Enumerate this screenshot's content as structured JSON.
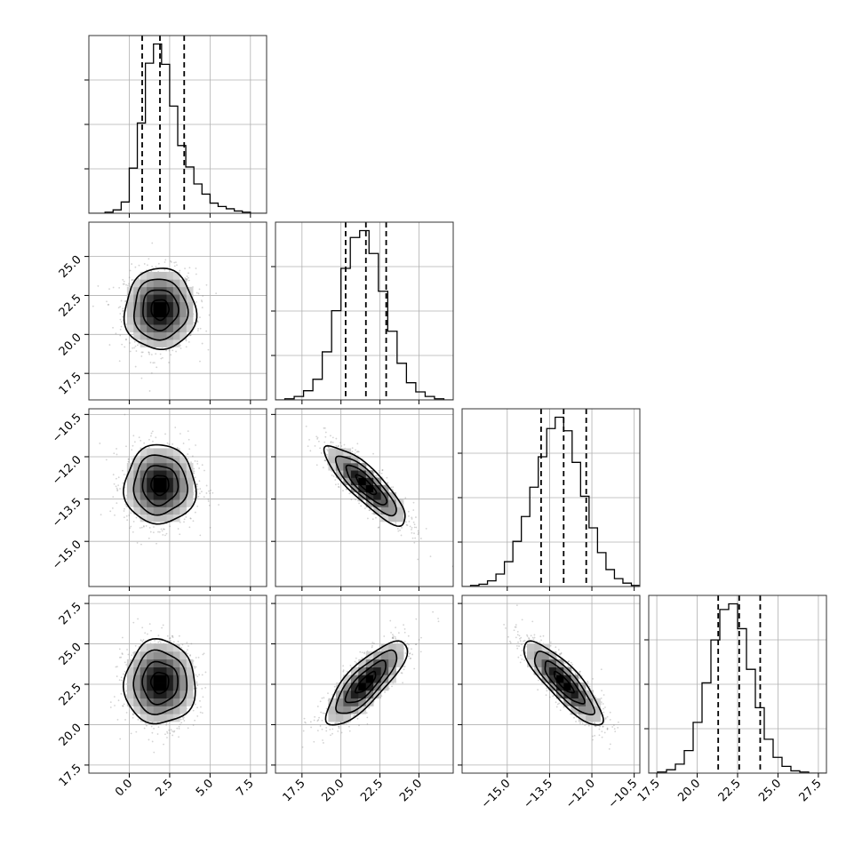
{
  "chart_data": {
    "type": "corner",
    "title": "",
    "parameters": [
      {
        "name": "",
        "range": [
          -2.5,
          8.5
        ],
        "ticks": [
          0.0,
          2.5,
          5.0,
          7.5
        ],
        "tick_labels": [
          "0.0",
          "2.5",
          "5.0",
          "7.5"
        ],
        "quantiles": [
          0.8,
          1.9,
          3.4
        ],
        "mean": 1.9,
        "sd": 1.1,
        "hist_bins": [
          -2.5,
          -2.0,
          -1.5,
          -1.0,
          -0.5,
          0.0,
          0.5,
          1.0,
          1.5,
          2.0,
          2.5,
          3.0,
          3.5,
          4.0,
          4.5,
          5.0,
          5.5,
          6.0,
          6.5,
          7.0,
          7.5,
          8.0,
          8.5
        ],
        "hist_counts": [
          0,
          0,
          1,
          3,
          10,
          40,
          80,
          133,
          150,
          132,
          95,
          60,
          41,
          26,
          17,
          9,
          6,
          4,
          2,
          1,
          0,
          0
        ]
      },
      {
        "name": "",
        "range": [
          15.8,
          27.2
        ],
        "ticks": [
          17.5,
          20.0,
          22.5,
          25.0
        ],
        "tick_labels": [
          "17.5",
          "20.0",
          "22.5",
          "25.0"
        ],
        "quantiles": [
          20.3,
          21.6,
          22.9
        ],
        "mean": 21.6,
        "sd": 1.3,
        "hist_bins": [
          15.8,
          16.4,
          17.0,
          17.6,
          18.2,
          18.8,
          19.4,
          20.0,
          20.6,
          21.2,
          21.8,
          22.4,
          23.0,
          23.6,
          24.2,
          24.8,
          25.4,
          26.0,
          26.6,
          27.2
        ],
        "hist_counts": [
          0,
          1,
          3,
          8,
          18,
          42,
          78,
          115,
          142,
          148,
          128,
          95,
          60,
          32,
          15,
          7,
          3,
          1,
          0
        ]
      },
      {
        "name": "",
        "range": [
          -16.6,
          -10.3
        ],
        "ticks": [
          -15.0,
          -13.5,
          -12.0,
          -10.5
        ],
        "tick_labels": [
          "−15.0",
          "−13.5",
          "−12.0",
          "−10.5"
        ],
        "quantiles": [
          -13.8,
          -13.0,
          -12.2
        ],
        "mean": -13.0,
        "sd": 0.7,
        "hist_bins": [
          -16.6,
          -16.3,
          -16.0,
          -15.7,
          -15.4,
          -15.1,
          -14.8,
          -14.5,
          -14.2,
          -13.9,
          -13.6,
          -13.3,
          -13.0,
          -12.7,
          -12.4,
          -12.1,
          -11.8,
          -11.5,
          -11.2,
          -10.9,
          -10.6,
          -10.3
        ],
        "hist_counts": [
          0,
          1,
          2,
          5,
          11,
          22,
          40,
          62,
          88,
          115,
          140,
          150,
          138,
          110,
          80,
          52,
          30,
          15,
          7,
          3,
          1
        ]
      },
      {
        "name": "",
        "range": [
          17.0,
          28.0
        ],
        "ticks": [
          17.5,
          20.0,
          22.5,
          25.0,
          27.5
        ],
        "tick_labels": [
          "17.5",
          "20.0",
          "22.5",
          "25.0",
          "27.5"
        ],
        "quantiles": [
          21.3,
          22.6,
          23.9
        ],
        "mean": 22.6,
        "sd": 1.3,
        "hist_bins": [
          17.0,
          17.55,
          18.1,
          18.65,
          19.2,
          19.75,
          20.3,
          20.85,
          21.4,
          21.95,
          22.5,
          23.05,
          23.6,
          24.15,
          24.7,
          25.25,
          25.8,
          26.35,
          26.9,
          27.45,
          28.0
        ],
        "hist_counts": [
          0,
          1,
          3,
          8,
          20,
          45,
          80,
          118,
          145,
          150,
          128,
          92,
          58,
          30,
          14,
          6,
          2,
          1,
          0,
          0
        ]
      }
    ],
    "correlations": {
      "1-0": 0.0,
      "2-0": 0.0,
      "2-1": -0.85,
      "3-0": 0.0,
      "3-1": 0.8,
      "3-2": -0.85
    },
    "contour_levels_sigma": [
      0.5,
      1.0,
      1.5,
      2.0
    ],
    "grid": true
  }
}
